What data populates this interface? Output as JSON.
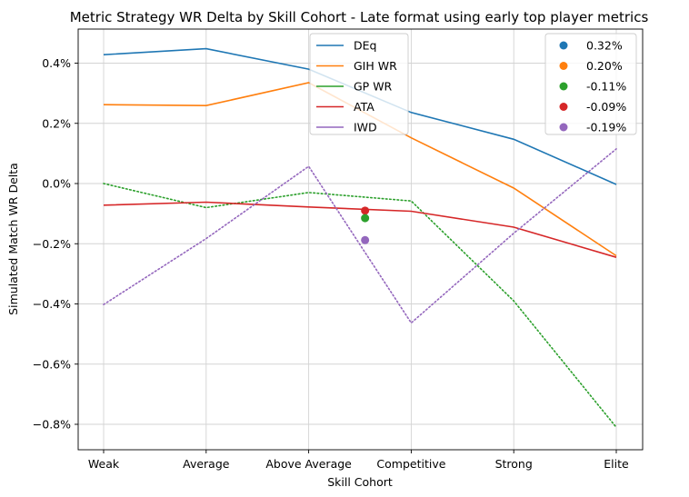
{
  "chart_data": {
    "type": "line",
    "title": "Metric Strategy WR Delta by Skill Cohort - Late format using early top player metrics",
    "xlabel": "Skill Cohort",
    "ylabel": "Simulated Match WR Delta",
    "categories": [
      "Weak",
      "Average",
      "Above Average",
      "Competitive",
      "Strong",
      "Elite"
    ],
    "ylim": [
      -0.88,
      0.5
    ],
    "yticks": [
      -0.8,
      -0.6,
      -0.4,
      -0.2,
      0.0,
      0.2,
      0.4
    ],
    "ytick_labels": [
      "−0.8%",
      "−0.6%",
      "−0.4%",
      "−0.2%",
      "0.0%",
      "0.2%",
      "0.4%"
    ],
    "grid": true,
    "series": [
      {
        "name": "DEq",
        "color": "#1f77b4",
        "values": [
          0.428,
          0.448,
          0.38,
          0.236,
          0.147,
          -0.003
        ]
      },
      {
        "name": "GIH WR",
        "color": "#ff7f0e",
        "values": [
          0.262,
          0.259,
          0.335,
          0.152,
          -0.015,
          -0.24
        ]
      },
      {
        "name": "GP WR",
        "color": "#2ca02c",
        "values": [
          0.0,
          -0.08,
          -0.03,
          -0.058,
          -0.39,
          -0.81
        ],
        "style": "dotted"
      },
      {
        "name": "ATA",
        "color": "#d62728",
        "values": [
          -0.072,
          -0.062,
          -0.078,
          -0.092,
          -0.145,
          -0.245
        ]
      },
      {
        "name": "IWD",
        "color": "#9467bd",
        "values": [
          -0.402,
          -0.183,
          0.057,
          -0.463,
          -0.165,
          0.115
        ],
        "style": "dotted"
      }
    ],
    "points": [
      {
        "x": 2.55,
        "y": -0.09,
        "color": "#d62728"
      },
      {
        "x": 2.55,
        "y": -0.115,
        "color": "#2ca02c"
      },
      {
        "x": 2.55,
        "y": -0.188,
        "color": "#9467bd"
      }
    ],
    "legend_lines": {
      "placement": "upper-center",
      "entries": [
        {
          "label": "DEq",
          "color": "#1f77b4"
        },
        {
          "label": "GIH WR",
          "color": "#ff7f0e"
        },
        {
          "label": "GP WR",
          "color": "#2ca02c"
        },
        {
          "label": "ATA",
          "color": "#d62728"
        },
        {
          "label": "IWD",
          "color": "#9467bd"
        }
      ]
    },
    "legend_points": {
      "placement": "upper-right",
      "entries": [
        {
          "label": "0.32%",
          "color": "#1f77b4"
        },
        {
          "label": "0.20%",
          "color": "#ff7f0e"
        },
        {
          "label": "-0.11%",
          "color": "#2ca02c"
        },
        {
          "label": "-0.09%",
          "color": "#d62728"
        },
        {
          "label": "-0.19%",
          "color": "#9467bd"
        }
      ]
    }
  }
}
